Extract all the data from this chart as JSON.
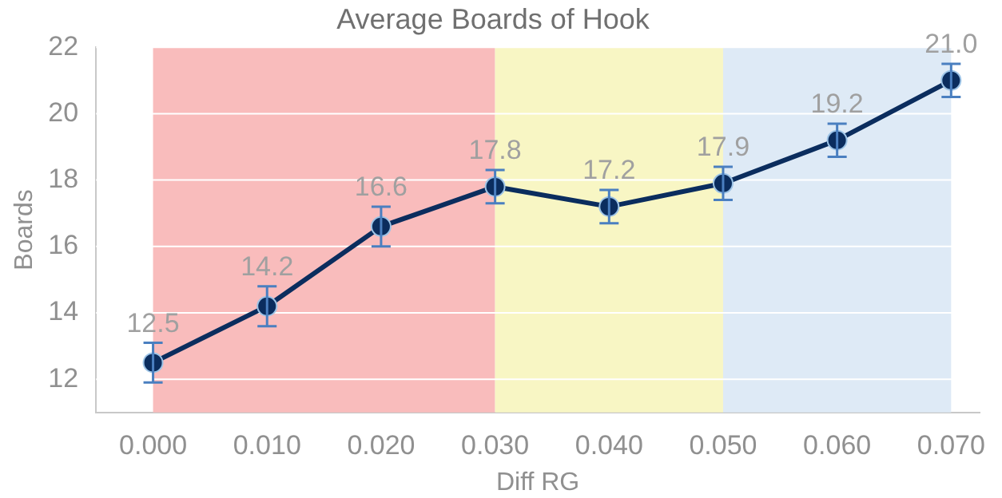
{
  "chart_data": {
    "type": "line",
    "title": "Average Boards of Hook",
    "xlabel": "Diff RG",
    "ylabel": "Boards",
    "x": [
      0,
      0.01,
      0.02,
      0.03,
      0.04,
      0.05,
      0.06,
      0.07
    ],
    "series": [
      {
        "color": "#0b2d5e",
        "values": [
          12.5,
          14.2,
          16.6,
          17.8,
          17.2,
          17.9,
          19.2,
          21.0
        ],
        "value_labels": [
          "12.5",
          "14.2",
          "16.6",
          "17.8",
          "17.2",
          "17.9",
          "19.2",
          "21.0"
        ],
        "errors": [
          0.6,
          0.6,
          0.6,
          0.5,
          0.5,
          0.5,
          0.5,
          0.5
        ]
      }
    ],
    "xlim": [
      -0.005,
      0.0725
    ],
    "ylim": [
      11,
      22
    ],
    "xticks": [
      {
        "value": 0,
        "label": "0.000"
      },
      {
        "value": 0.01,
        "label": "0.010"
      },
      {
        "value": 0.02,
        "label": "0.020"
      },
      {
        "value": 0.03,
        "label": "0.030"
      },
      {
        "value": 0.04,
        "label": "0.040"
      },
      {
        "value": 0.05,
        "label": "0.050"
      },
      {
        "value": 0.06,
        "label": "0.060"
      },
      {
        "value": 0.07,
        "label": "0.070"
      }
    ],
    "yticks": [
      12,
      14,
      16,
      18,
      20,
      22
    ],
    "bands": [
      {
        "axis": "x",
        "from": 0,
        "to": 0.03,
        "color": "#f9bcbc"
      },
      {
        "axis": "x",
        "from": 0.03,
        "to": 0.05,
        "color": "#f8f6c4"
      },
      {
        "axis": "x",
        "from": 0.05,
        "to": 0.07,
        "color": "#deeaf6"
      }
    ],
    "grid": "y",
    "legend": false,
    "marker": "circle",
    "line_style": "solid"
  }
}
